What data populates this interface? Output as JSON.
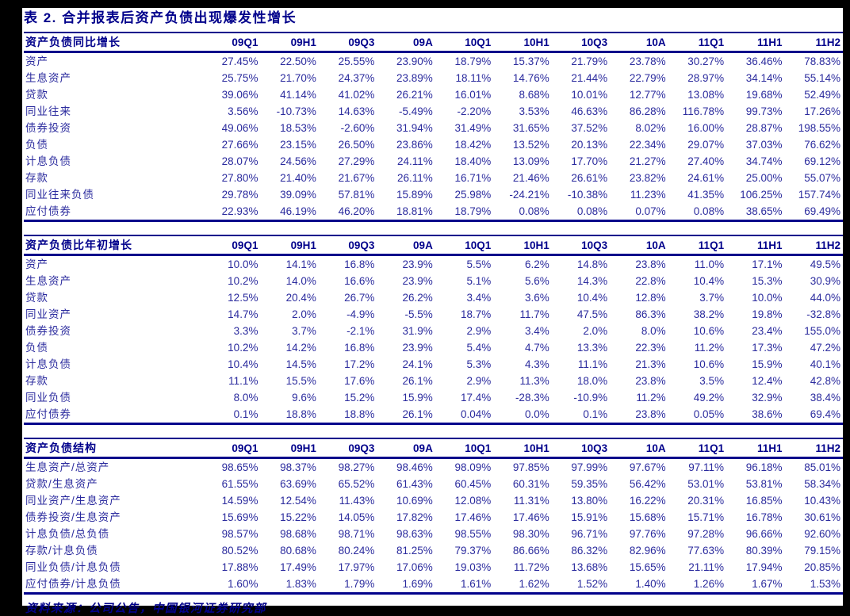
{
  "title": "表 2. 合并报表后资产负债出现爆发性增长",
  "source_note": "资料来源：公司公告，中国银河证券研究部",
  "colors": {
    "frame_background": "#000000",
    "page_background": "#ffffff",
    "border_navy": "#00008b",
    "header_text": "#00008b",
    "value_text": "#2b2b9e"
  },
  "columns": [
    "09Q1",
    "09H1",
    "09Q3",
    "09A",
    "10Q1",
    "10H1",
    "10Q3",
    "10A",
    "11Q1",
    "11H1",
    "11H2"
  ],
  "tables": [
    {
      "name": "table-yoy-growth",
      "header": "资产负债同比增长",
      "rows": [
        {
          "label": "资产",
          "values": [
            "27.45%",
            "22.50%",
            "25.55%",
            "23.90%",
            "18.79%",
            "15.37%",
            "21.79%",
            "23.78%",
            "30.27%",
            "36.46%",
            "78.83%"
          ]
        },
        {
          "label": "生息资产",
          "values": [
            "25.75%",
            "21.70%",
            "24.37%",
            "23.89%",
            "18.11%",
            "14.76%",
            "21.44%",
            "22.79%",
            "28.97%",
            "34.14%",
            "55.14%"
          ]
        },
        {
          "label": "贷款",
          "values": [
            "39.06%",
            "41.14%",
            "41.02%",
            "26.21%",
            "16.01%",
            "8.68%",
            "10.01%",
            "12.77%",
            "13.08%",
            "19.68%",
            "52.49%"
          ]
        },
        {
          "label": "同业往来",
          "values": [
            "3.56%",
            "-10.73%",
            "14.63%",
            "-5.49%",
            "-2.20%",
            "3.53%",
            "46.63%",
            "86.28%",
            "116.78%",
            "99.73%",
            "17.26%"
          ]
        },
        {
          "label": "债券投资",
          "values": [
            "49.06%",
            "18.53%",
            "-2.60%",
            "31.94%",
            "31.49%",
            "31.65%",
            "37.52%",
            "8.02%",
            "16.00%",
            "28.87%",
            "198.55%"
          ]
        },
        {
          "label": "负债",
          "values": [
            "27.66%",
            "23.15%",
            "26.50%",
            "23.86%",
            "18.42%",
            "13.52%",
            "20.13%",
            "22.34%",
            "29.07%",
            "37.03%",
            "76.62%"
          ]
        },
        {
          "label": "计息负债",
          "values": [
            "28.07%",
            "24.56%",
            "27.29%",
            "24.11%",
            "18.40%",
            "13.09%",
            "17.70%",
            "21.27%",
            "27.40%",
            "34.74%",
            "69.12%"
          ]
        },
        {
          "label": "存款",
          "values": [
            "27.80%",
            "21.40%",
            "21.67%",
            "26.11%",
            "16.71%",
            "21.46%",
            "26.61%",
            "23.82%",
            "24.61%",
            "25.00%",
            "55.07%"
          ]
        },
        {
          "label": "同业往来负债",
          "values": [
            "29.78%",
            "39.09%",
            "57.81%",
            "15.89%",
            "25.98%",
            "-24.21%",
            "-10.38%",
            "11.23%",
            "41.35%",
            "106.25%",
            "157.74%"
          ]
        },
        {
          "label": "应付债券",
          "values": [
            "22.93%",
            "46.19%",
            "46.20%",
            "18.81%",
            "18.79%",
            "0.08%",
            "0.08%",
            "0.07%",
            "0.08%",
            "38.65%",
            "69.49%"
          ]
        }
      ]
    },
    {
      "name": "table-ytd-growth",
      "header": "资产负债比年初增长",
      "rows": [
        {
          "label": "资产",
          "values": [
            "10.0%",
            "14.1%",
            "16.8%",
            "23.9%",
            "5.5%",
            "6.2%",
            "14.8%",
            "23.8%",
            "11.0%",
            "17.1%",
            "49.5%"
          ]
        },
        {
          "label": "生息资产",
          "values": [
            "10.2%",
            "14.0%",
            "16.6%",
            "23.9%",
            "5.1%",
            "5.6%",
            "14.3%",
            "22.8%",
            "10.4%",
            "15.3%",
            "30.9%"
          ]
        },
        {
          "label": "贷款",
          "values": [
            "12.5%",
            "20.4%",
            "26.7%",
            "26.2%",
            "3.4%",
            "3.6%",
            "10.4%",
            "12.8%",
            "3.7%",
            "10.0%",
            "44.0%"
          ]
        },
        {
          "label": "同业资产",
          "values": [
            "14.7%",
            "2.0%",
            "-4.9%",
            "-5.5%",
            "18.7%",
            "11.7%",
            "47.5%",
            "86.3%",
            "38.2%",
            "19.8%",
            "-32.8%"
          ]
        },
        {
          "label": "债券投资",
          "values": [
            "3.3%",
            "3.7%",
            "-2.1%",
            "31.9%",
            "2.9%",
            "3.4%",
            "2.0%",
            "8.0%",
            "10.6%",
            "23.4%",
            "155.0%"
          ]
        },
        {
          "label": "负债",
          "values": [
            "10.2%",
            "14.2%",
            "16.8%",
            "23.9%",
            "5.4%",
            "4.7%",
            "13.3%",
            "22.3%",
            "11.2%",
            "17.3%",
            "47.2%"
          ]
        },
        {
          "label": "计息负债",
          "values": [
            "10.4%",
            "14.5%",
            "17.2%",
            "24.1%",
            "5.3%",
            "4.3%",
            "11.1%",
            "21.3%",
            "10.6%",
            "15.9%",
            "40.1%"
          ]
        },
        {
          "label": "存款",
          "values": [
            "11.1%",
            "15.5%",
            "17.6%",
            "26.1%",
            "2.9%",
            "11.3%",
            "18.0%",
            "23.8%",
            "3.5%",
            "12.4%",
            "42.8%"
          ]
        },
        {
          "label": "同业负债",
          "values": [
            "8.0%",
            "9.6%",
            "15.2%",
            "15.9%",
            "17.4%",
            "-28.3%",
            "-10.9%",
            "11.2%",
            "49.2%",
            "32.9%",
            "38.4%"
          ]
        },
        {
          "label": "应付债券",
          "values": [
            "0.1%",
            "18.8%",
            "18.8%",
            "26.1%",
            "0.04%",
            "0.0%",
            "0.1%",
            "23.8%",
            "0.05%",
            "38.6%",
            "69.4%"
          ]
        }
      ]
    },
    {
      "name": "table-balance-structure",
      "header": "资产负债结构",
      "rows": [
        {
          "label": "生息资产/总资产",
          "values": [
            "98.65%",
            "98.37%",
            "98.27%",
            "98.46%",
            "98.09%",
            "97.85%",
            "97.99%",
            "97.67%",
            "97.11%",
            "96.18%",
            "85.01%"
          ]
        },
        {
          "label": "贷款/生息资产",
          "values": [
            "61.55%",
            "63.69%",
            "65.52%",
            "61.43%",
            "60.45%",
            "60.31%",
            "59.35%",
            "56.42%",
            "53.01%",
            "53.81%",
            "58.34%"
          ]
        },
        {
          "label": "同业资产/生息资产",
          "values": [
            "14.59%",
            "12.54%",
            "11.43%",
            "10.69%",
            "12.08%",
            "11.31%",
            "13.80%",
            "16.22%",
            "20.31%",
            "16.85%",
            "10.43%"
          ]
        },
        {
          "label": "债券投资/生息资产",
          "values": [
            "15.69%",
            "15.22%",
            "14.05%",
            "17.82%",
            "17.46%",
            "17.46%",
            "15.91%",
            "15.68%",
            "15.71%",
            "16.78%",
            "30.61%"
          ]
        },
        {
          "label": "计息负债/总负债",
          "values": [
            "98.57%",
            "98.68%",
            "98.71%",
            "98.63%",
            "98.55%",
            "98.30%",
            "96.71%",
            "97.76%",
            "97.28%",
            "96.66%",
            "92.60%"
          ]
        },
        {
          "label": "存款/计息负债",
          "values": [
            "80.52%",
            "80.68%",
            "80.24%",
            "81.25%",
            "79.37%",
            "86.66%",
            "86.32%",
            "82.96%",
            "77.63%",
            "80.39%",
            "79.15%"
          ]
        },
        {
          "label": "同业负债/计息负债",
          "values": [
            "17.88%",
            "17.49%",
            "17.97%",
            "17.06%",
            "19.03%",
            "11.72%",
            "13.68%",
            "15.65%",
            "21.11%",
            "17.94%",
            "20.85%"
          ]
        },
        {
          "label": "应付债券/计息负债",
          "values": [
            "1.60%",
            "1.83%",
            "1.79%",
            "1.69%",
            "1.61%",
            "1.62%",
            "1.52%",
            "1.40%",
            "1.26%",
            "1.67%",
            "1.53%"
          ]
        }
      ]
    }
  ]
}
